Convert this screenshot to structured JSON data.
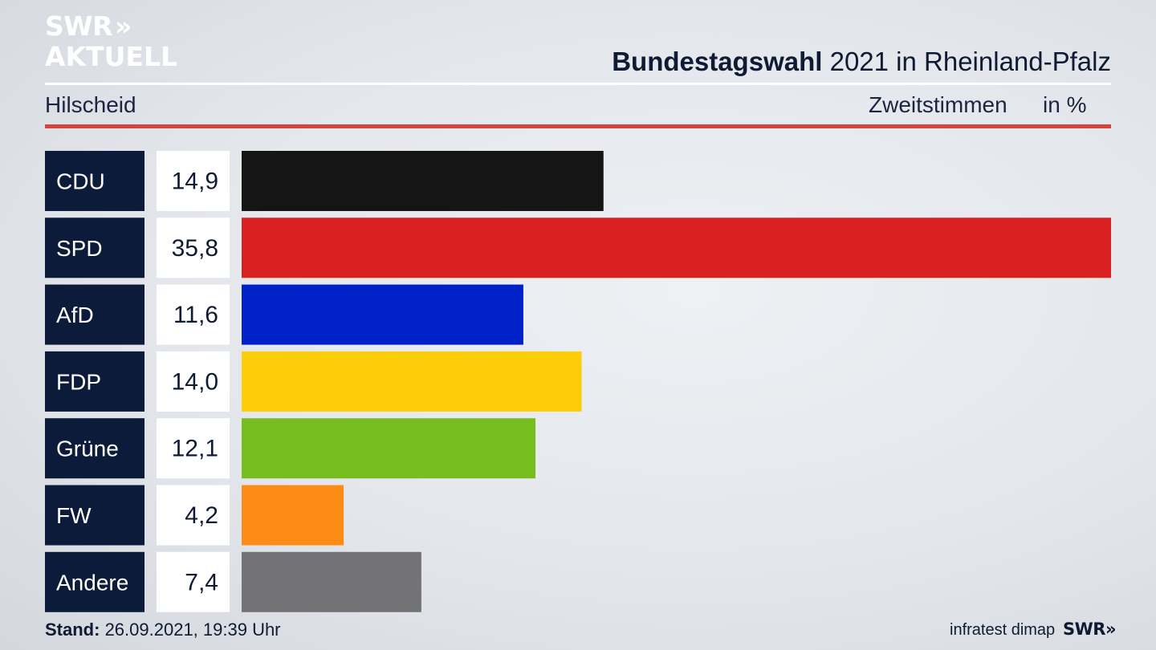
{
  "logo": {
    "line1": "SWR",
    "chevrons": "»",
    "line2": "AKTUELL"
  },
  "header": {
    "title_bold": "Bundestagswahl",
    "title_rest": " 2021 in Rheinland-Pfalz",
    "place": "Hilscheid",
    "vote_type": "Zweitstimmen",
    "unit": "in %"
  },
  "colors": {
    "label_bg": "#0c1b3a",
    "value_bg": "#ffffff",
    "accent_red_rule": "#d6453d"
  },
  "chart_data": {
    "type": "bar",
    "orientation": "horizontal",
    "categories": [
      "CDU",
      "SPD",
      "AfD",
      "FDP",
      "Grüne",
      "FW",
      "Andere"
    ],
    "values": [
      14.9,
      35.8,
      11.6,
      14.0,
      12.1,
      4.2,
      7.4
    ],
    "value_labels": [
      "14,9",
      "35,8",
      "11,6",
      "14,0",
      "12,1",
      "4,2",
      "7,4"
    ],
    "colors": [
      "#151515",
      "#d7201f",
      "#0020c8",
      "#fecd0a",
      "#78bd1f",
      "#fd8c17",
      "#737375"
    ],
    "xlim": [
      0,
      35.8
    ]
  },
  "footer": {
    "stand_label": "Stand:",
    "stand_value": " 26.09.2021, 19:39 Uhr",
    "source": "infratest dimap",
    "logo_text": "SWR",
    "logo_chevrons": "»"
  }
}
